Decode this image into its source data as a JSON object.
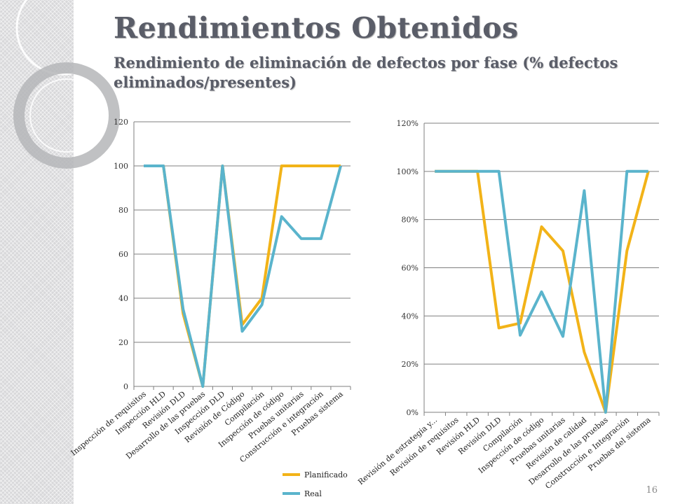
{
  "slide": {
    "title": "Rendimientos Obtenidos",
    "subtitle": "Rendimiento de eliminación  de defectos por fase (% defectos eliminados/presentes)",
    "page_number": "16"
  },
  "colors": {
    "planificado": "#f2b318",
    "real": "#5ab4cc",
    "grid": "#7f7f7f",
    "title": "#5a5d68"
  },
  "chart_data": [
    {
      "type": "line",
      "categories": [
        "Inspección de requisitos",
        "Inspección HLD",
        "Revisión DLD",
        "Desarrollo de las pruebas",
        "Inspección DLD",
        "Revisión de Código",
        "Compilación",
        "Inspección de código",
        "Pruebas unitarias",
        "Construcción e integración",
        "Pruebas sistema"
      ],
      "series": [
        {
          "name": "Planificado",
          "values": [
            100,
            100,
            33,
            0,
            100,
            28,
            40,
            100,
            100,
            100,
            100
          ]
        },
        {
          "name": "Real",
          "values": [
            100,
            100,
            35,
            0,
            100,
            25,
            37,
            77,
            67,
            67,
            100
          ]
        }
      ],
      "ylim": [
        0,
        120
      ],
      "yticks": [
        "0",
        "20",
        "40",
        "60",
        "80",
        "100",
        "120"
      ],
      "grid": true,
      "legend": "bottom"
    },
    {
      "type": "line",
      "categories": [
        "Revisión de estrategia y...",
        "Revisión de requisitos",
        "Revisión HLD",
        "Revisión DLD",
        "Compilación",
        "Inspección de código",
        "Pruebas unitarias",
        "Revisión de calidad",
        "Desarrollo de las pruebas",
        "Construcción e Integración",
        "Pruebas del sistema"
      ],
      "series": [
        {
          "name": "Planificado",
          "values": [
            1.0,
            1.0,
            1.0,
            0.35,
            0.37,
            0.77,
            0.67,
            0.25,
            0.0,
            0.67,
            1.0
          ]
        },
        {
          "name": "Real",
          "values": [
            1.0,
            1.0,
            1.0,
            1.0,
            0.32,
            0.5,
            0.315,
            0.92,
            0.0,
            1.0,
            1.0
          ]
        }
      ],
      "ylim": [
        0,
        1.2
      ],
      "yticks": [
        "0%",
        "20%",
        "40%",
        "60%",
        "80%",
        "100%",
        "120%"
      ],
      "grid": true
    }
  ]
}
